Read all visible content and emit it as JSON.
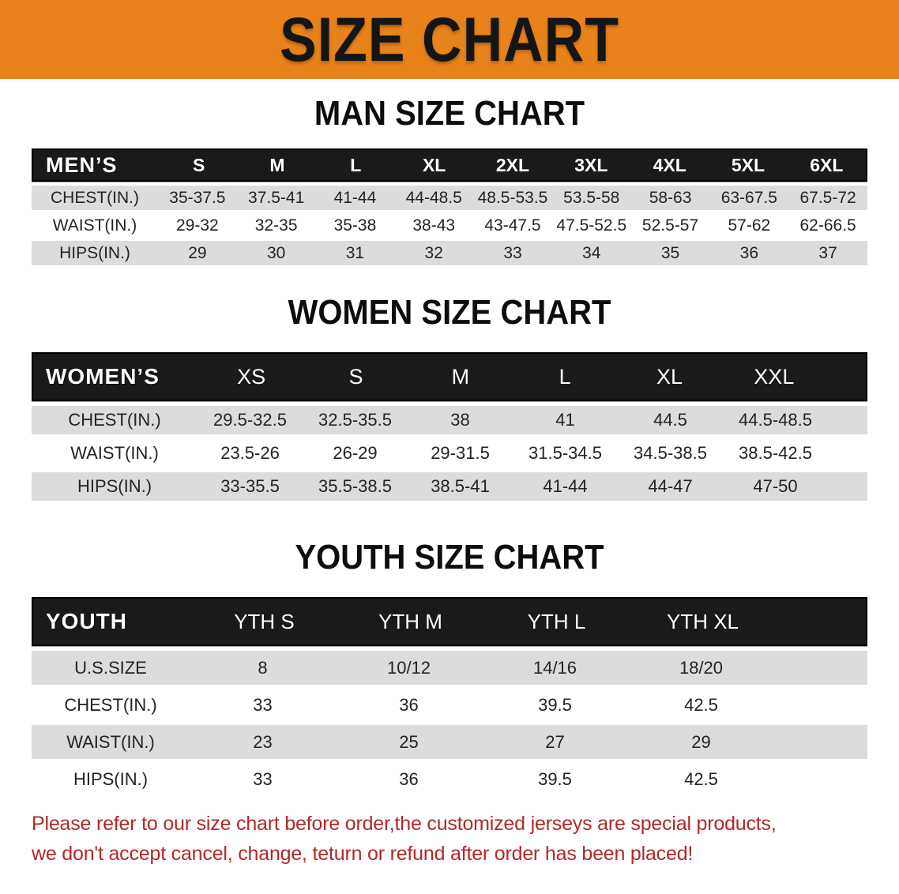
{
  "banner": {
    "title": "SIZE CHART"
  },
  "colors": {
    "banner_bg": "#E8821B",
    "header_bar": "#1A1A1A",
    "stripe_gray": "#DCDCDC",
    "disclaimer_red": "#B22828"
  },
  "sections": [
    {
      "heading": "MAN SIZE CHART",
      "table": {
        "label": "MEN’S",
        "sizes": [
          "S",
          "M",
          "L",
          "XL",
          "2XL",
          "3XL",
          "4XL",
          "5XL",
          "6XL"
        ],
        "rows": [
          {
            "label": "CHEST(IN.)",
            "values": [
              "35-37.5",
              "37.5-41",
              "41-44",
              "44-48.5",
              "48.5-53.5",
              "53.5-58",
              "58-63",
              "63-67.5",
              "67.5-72"
            ]
          },
          {
            "label": "WAIST(IN.)",
            "values": [
              "29-32",
              "32-35",
              "35-38",
              "38-43",
              "43-47.5",
              "47.5-52.5",
              "52.5-57",
              "57-62",
              "62-66.5"
            ]
          },
          {
            "label": "HIPS(IN.)",
            "values": [
              "29",
              "30",
              "31",
              "32",
              "33",
              "34",
              "35",
              "36",
              "37"
            ]
          }
        ]
      }
    },
    {
      "heading": "WOMEN SIZE CHART",
      "table": {
        "label": "WOMEN’S",
        "sizes": [
          "XS",
          "S",
          "M",
          "L",
          "XL",
          "XXL"
        ],
        "rows": [
          {
            "label": "CHEST(IN.)",
            "values": [
              "29.5-32.5",
              "32.5-35.5",
              "38",
              "41",
              "44.5",
              "44.5-48.5"
            ]
          },
          {
            "label": "WAIST(IN.)",
            "values": [
              "23.5-26",
              "26-29",
              "29-31.5",
              "31.5-34.5",
              "34.5-38.5",
              "38.5-42.5"
            ]
          },
          {
            "label": "HIPS(IN.)",
            "values": [
              "33-35.5",
              "35.5-38.5",
              "38.5-41",
              "41-44",
              "44-47",
              "47-50"
            ]
          }
        ]
      }
    },
    {
      "heading": "YOUTH SIZE CHART",
      "table": {
        "label": "YOUTH",
        "sizes": [
          "YTH S",
          "YTH M",
          "YTH L",
          "YTH XL"
        ],
        "rows": [
          {
            "label": "U.S.SIZE",
            "values": [
              "8",
              "10/12",
              "14/16",
              "18/20"
            ]
          },
          {
            "label": "CHEST(IN.)",
            "values": [
              "33",
              "36",
              "39.5",
              "42.5"
            ]
          },
          {
            "label": "WAIST(IN.)",
            "values": [
              "23",
              "25",
              "27",
              "29"
            ]
          },
          {
            "label": "HIPS(IN.)",
            "values": [
              "33",
              "36",
              "39.5",
              "42.5"
            ]
          }
        ]
      }
    }
  ],
  "disclaimer": {
    "line1": "Please refer to our size chart before order,the customized jerseys are special products,",
    "line2": "we don't accept cancel, change, teturn or refund after order has been placed!"
  }
}
